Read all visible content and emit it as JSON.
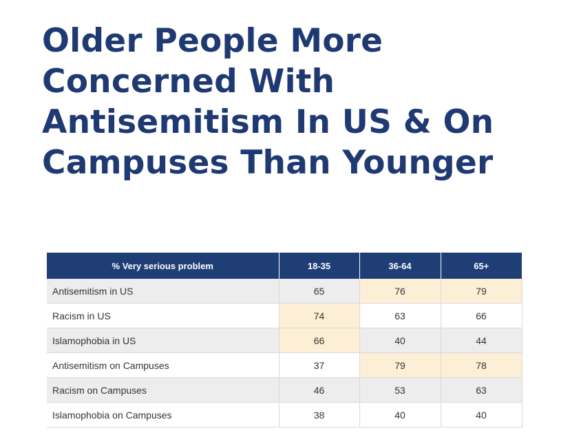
{
  "title_lines": [
    "Older People More",
    "Concerned With",
    "Antisemitism In US & On",
    "Campuses Than Younger"
  ],
  "colors": {
    "title": "#1f3a73",
    "header_bg": "#1f3e76",
    "row_shade": "#ededed",
    "highlight": "#fdefd6"
  },
  "chart_data": {
    "type": "table",
    "columns": [
      "% Very serious problem",
      "18-35",
      "36-64",
      "65+"
    ],
    "rows": [
      {
        "label": "Antisemitism in US",
        "values": [
          65,
          76,
          79
        ],
        "highlight": [
          false,
          true,
          true
        ]
      },
      {
        "label": "Racism in US",
        "values": [
          74,
          63,
          66
        ],
        "highlight": [
          true,
          false,
          false
        ]
      },
      {
        "label": "Islamophobia in US",
        "values": [
          66,
          40,
          44
        ],
        "highlight": [
          true,
          false,
          false
        ]
      },
      {
        "label": "Antisemitism on Campuses",
        "values": [
          37,
          79,
          78
        ],
        "highlight": [
          false,
          true,
          true
        ]
      },
      {
        "label": "Racism on Campuses",
        "values": [
          46,
          53,
          63
        ],
        "highlight": [
          false,
          false,
          false
        ]
      },
      {
        "label": "Islamophobia on Campuses",
        "values": [
          38,
          40,
          40
        ],
        "highlight": [
          false,
          false,
          false
        ]
      }
    ]
  }
}
